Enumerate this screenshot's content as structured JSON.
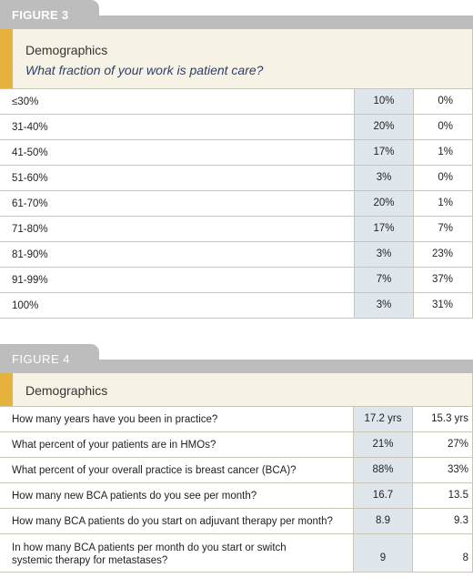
{
  "figure3": {
    "tab_label": "FIGURE 3",
    "title": "Demographics",
    "subtitle": "What fraction of your work is patient care?",
    "rows": [
      {
        "label": "≤30%",
        "col1": "10%",
        "col2": "0%"
      },
      {
        "label": "31-40%",
        "col1": "20%",
        "col2": "0%"
      },
      {
        "label": "41-50%",
        "col1": "17%",
        "col2": "1%"
      },
      {
        "label": "51-60%",
        "col1": "3%",
        "col2": "0%"
      },
      {
        "label": "61-70%",
        "col1": "20%",
        "col2": "1%"
      },
      {
        "label": "71-80%",
        "col1": "17%",
        "col2": "7%"
      },
      {
        "label": "81-90%",
        "col1": "3%",
        "col2": "23%"
      },
      {
        "label": "91-99%",
        "col1": "7%",
        "col2": "37%"
      },
      {
        "label": "100%",
        "col1": "3%",
        "col2": "31%"
      }
    ]
  },
  "figure4": {
    "tab_label": "FIGURE 4",
    "title": "Demographics",
    "rows": [
      {
        "label": "How many years have you been in practice?",
        "col1": "17.2 yrs",
        "col2": "15.3 yrs"
      },
      {
        "label": "What percent of your patients are in HMOs?",
        "col1": "21%",
        "col2": "27%"
      },
      {
        "label": "What percent of your overall practice is breast cancer (BCA)?",
        "col1": "88%",
        "col2": "33%"
      },
      {
        "label": "How many new BCA patients do you see per month?",
        "col1": "16.7",
        "col2": "13.5"
      },
      {
        "label": "How many BCA patients do you start on adjuvant therapy per month?",
        "col1": "8.9",
        "col2": "9.3"
      },
      {
        "label_line1": "In how many BCA patients per month do you start or switch",
        "label_line2": "systemic therapy for metastases?",
        "col1": "9",
        "col2": "8"
      }
    ]
  }
}
